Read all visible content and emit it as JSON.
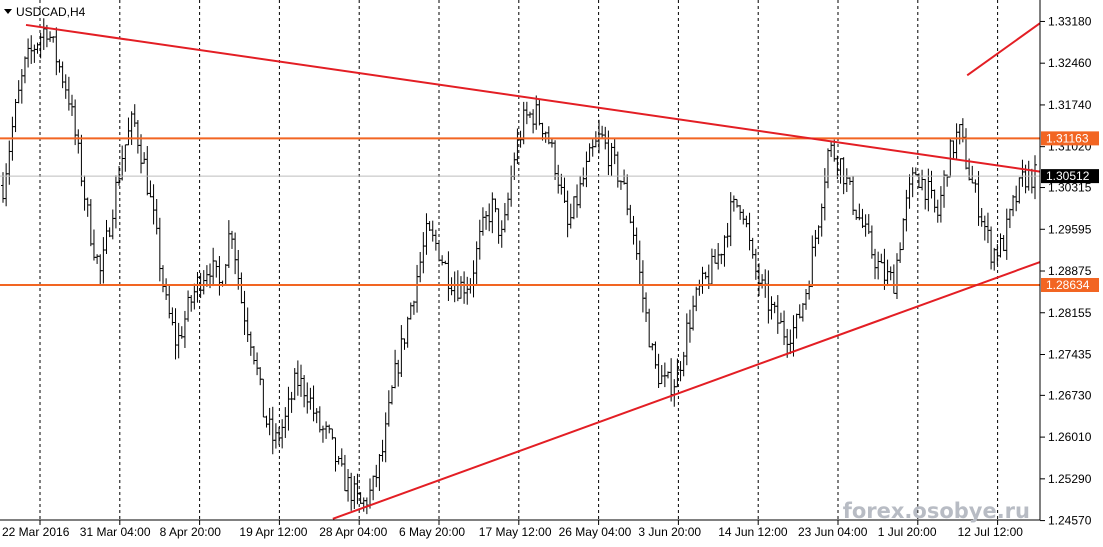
{
  "window": {
    "symbol_title": "USDCAD,H4",
    "dropdown_icon": "triangle-down-icon"
  },
  "watermark": "forex.osobye.ru",
  "chart_data": {
    "type": "candlestick-bars",
    "title": "USDCAD,H4",
    "symbol": "USDCAD",
    "timeframe": "H4",
    "ylim": [
      1.2458,
      1.3355
    ],
    "y_ticks": [
      "1.33180",
      "1.32460",
      "1.31740",
      "1.31020",
      "1.30315",
      "1.29595",
      "1.28875",
      "1.28155",
      "1.27435",
      "1.26730",
      "1.26010",
      "1.25290",
      "1.24570"
    ],
    "x_ticks": [
      "22 Mar 2016",
      "31 Mar 04:00",
      "8 Apr 20:00",
      "19 Apr 12:00",
      "28 Apr 04:00",
      "6 May 20:00",
      "17 May 12:00",
      "26 May 04:00",
      "3 Jun 20:00",
      "14 Jun 12:00",
      "23 Jun 04:00",
      "1 Jul 20:00",
      "12 Jul 12:00"
    ],
    "grid": true,
    "price_path": [
      1.3035,
      1.315,
      1.324,
      1.328,
      1.331,
      1.325,
      1.3195,
      1.308,
      1.296,
      1.288,
      1.299,
      1.309,
      1.315,
      1.307,
      1.296,
      1.283,
      1.276,
      1.282,
      1.287,
      1.29,
      1.286,
      1.297,
      1.283,
      1.276,
      1.264,
      1.259,
      1.263,
      1.27,
      1.268,
      1.262,
      1.26,
      1.254,
      1.251,
      1.248,
      1.251,
      1.258,
      1.27,
      1.278,
      1.287,
      1.295,
      1.293,
      1.288,
      1.286,
      1.287,
      1.295,
      1.3,
      1.294,
      1.308,
      1.315,
      1.316,
      1.313,
      1.306,
      1.296,
      1.302,
      1.308,
      1.312,
      1.308,
      1.304,
      1.296,
      1.283,
      1.272,
      1.269,
      1.27,
      1.279,
      1.285,
      1.288,
      1.292,
      1.299,
      1.301,
      1.29,
      1.285,
      1.281,
      1.278,
      1.279,
      1.286,
      1.297,
      1.31,
      1.308,
      1.302,
      1.297,
      1.292,
      1.288,
      1.287,
      1.299,
      1.306,
      1.303,
      1.298,
      1.308,
      1.313,
      1.305,
      1.299,
      1.292,
      1.293,
      1.3,
      1.305,
      1.3051
    ],
    "horizontal_levels": [
      {
        "value": 1.31163,
        "label": "1.31163",
        "color": "#f26522"
      },
      {
        "value": 1.28634,
        "label": "1.28634",
        "color": "#f26522"
      }
    ],
    "current_price": {
      "value": 1.30512,
      "label": "1.30512"
    },
    "trendlines": [
      {
        "name": "upper-trendline",
        "from": {
          "x": 0.025,
          "y": 1.3312
        },
        "to": {
          "x": 1.0,
          "y": 1.3059
        }
      },
      {
        "name": "lower-trendline",
        "from": {
          "x": 0.32,
          "y": 1.246
        },
        "to": {
          "x": 1.0,
          "y": 1.2903
        }
      },
      {
        "name": "projection-line",
        "from": {
          "x": 0.93,
          "y": 1.3225
        },
        "to": {
          "x": 1.0,
          "y": 1.3315
        }
      }
    ],
    "colors": {
      "bars": "#000000",
      "trendline": "#e31e24",
      "level": "#f26522",
      "grid": "#000000"
    }
  }
}
